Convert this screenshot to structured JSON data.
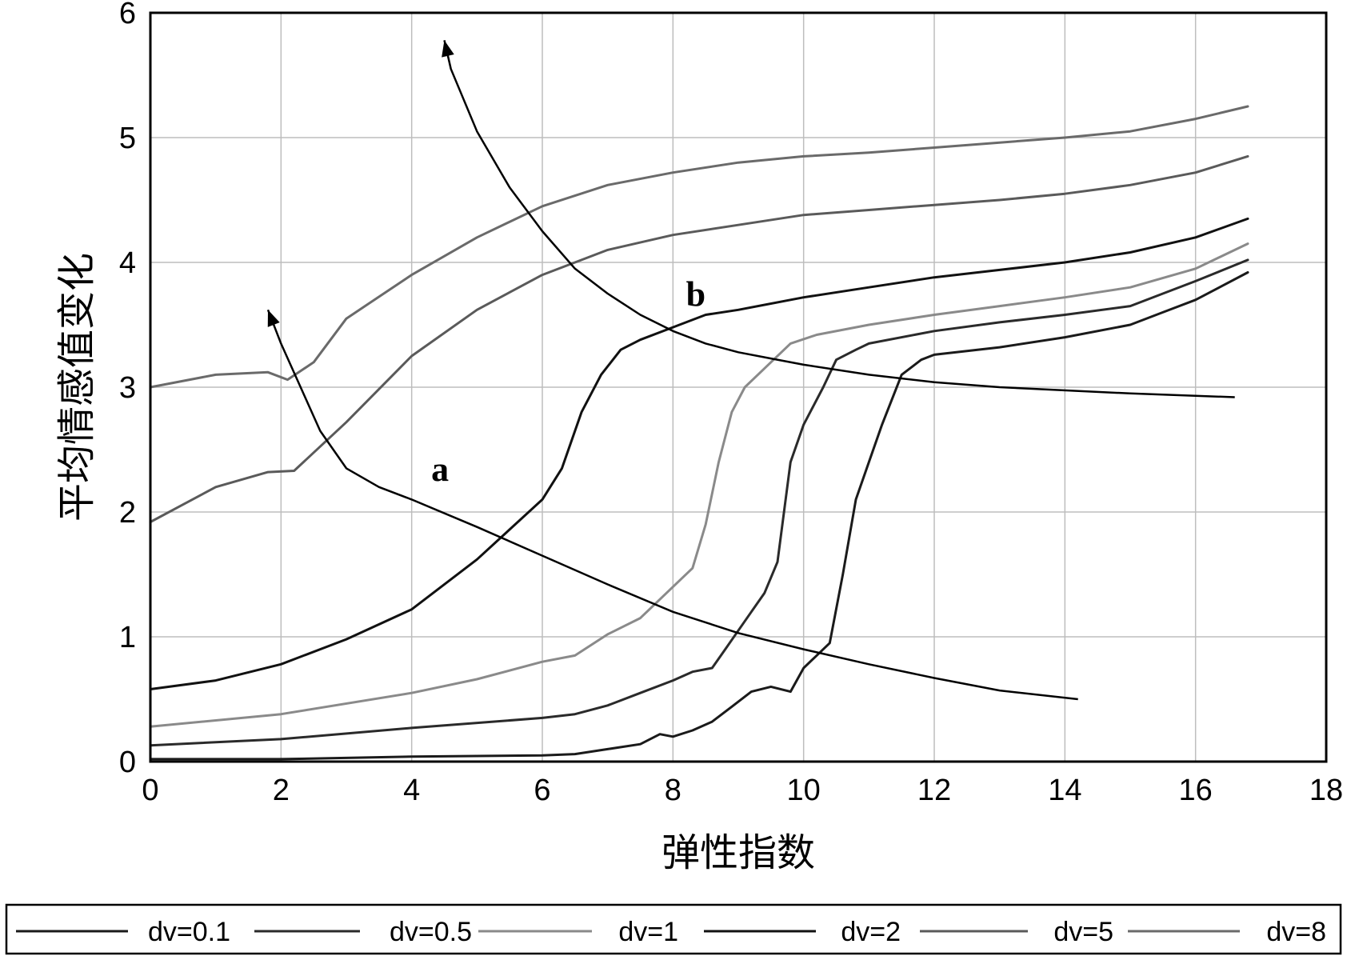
{
  "chart_data": {
    "type": "line",
    "title": "",
    "xlabel": "弹性指数",
    "ylabel": "平均情感值变化",
    "xlim": [
      0,
      18
    ],
    "ylim": [
      0,
      6
    ],
    "xticks": [
      0,
      2,
      4,
      6,
      8,
      10,
      12,
      14,
      16,
      18
    ],
    "yticks": [
      0,
      1,
      2,
      3,
      4,
      5,
      6
    ],
    "grid": true,
    "legend_position": "bottom",
    "series": [
      {
        "name": "dv=0.1",
        "color": "#1a1a1a",
        "x": [
          0,
          2,
          4,
          6,
          6.5,
          7,
          7.5,
          7.8,
          8,
          8.3,
          8.6,
          8.9,
          9.2,
          9.5,
          9.8,
          10.0,
          10.2,
          10.4,
          10.6,
          10.8,
          11.0,
          11.2,
          11.5,
          11.8,
          12,
          13,
          14,
          15,
          15.5,
          16,
          16.8
        ],
        "y": [
          0.02,
          0.02,
          0.04,
          0.05,
          0.06,
          0.1,
          0.14,
          0.22,
          0.2,
          0.25,
          0.32,
          0.44,
          0.56,
          0.6,
          0.56,
          0.75,
          0.85,
          0.95,
          1.5,
          2.1,
          2.4,
          2.7,
          3.1,
          3.22,
          3.26,
          3.32,
          3.4,
          3.5,
          3.6,
          3.7,
          3.92
        ]
      },
      {
        "name": "dv=0.5",
        "color": "#2a2a2a",
        "x": [
          0,
          2,
          4,
          6,
          6.5,
          7,
          7.5,
          8,
          8.3,
          8.6,
          8.8,
          9.0,
          9.2,
          9.4,
          9.6,
          9.8,
          10.0,
          10.3,
          10.5,
          10.8,
          11,
          12,
          13,
          14,
          15,
          15.5,
          16,
          16.8
        ],
        "y": [
          0.13,
          0.18,
          0.27,
          0.35,
          0.38,
          0.45,
          0.55,
          0.65,
          0.72,
          0.75,
          0.9,
          1.05,
          1.2,
          1.35,
          1.6,
          2.4,
          2.7,
          3.0,
          3.22,
          3.3,
          3.35,
          3.45,
          3.52,
          3.58,
          3.65,
          3.75,
          3.85,
          4.02
        ]
      },
      {
        "name": "dv=1",
        "color": "#8a8a8a",
        "x": [
          0,
          2,
          4,
          5,
          6,
          6.5,
          7,
          7.5,
          8,
          8.3,
          8.5,
          8.7,
          8.9,
          9.1,
          9.3,
          9.5,
          9.8,
          10.2,
          11,
          12,
          13,
          14,
          15,
          16,
          16.8
        ],
        "y": [
          0.28,
          0.38,
          0.55,
          0.66,
          0.8,
          0.85,
          1.02,
          1.15,
          1.4,
          1.55,
          1.9,
          2.4,
          2.8,
          3.0,
          3.1,
          3.2,
          3.35,
          3.42,
          3.5,
          3.58,
          3.65,
          3.72,
          3.8,
          3.95,
          4.15
        ]
      },
      {
        "name": "dv=2",
        "color": "#111111",
        "x": [
          0,
          1,
          2,
          3,
          4,
          5,
          6,
          6.3,
          6.6,
          6.9,
          7.2,
          7.5,
          8,
          8.5,
          9,
          10,
          11,
          12,
          13,
          14,
          15,
          16,
          16.8
        ],
        "y": [
          0.58,
          0.65,
          0.78,
          0.98,
          1.22,
          1.62,
          2.1,
          2.35,
          2.8,
          3.1,
          3.3,
          3.38,
          3.48,
          3.58,
          3.62,
          3.72,
          3.8,
          3.88,
          3.94,
          4.0,
          4.08,
          4.2,
          4.35
        ]
      },
      {
        "name": "dv=5",
        "color": "#5a5a5a",
        "x": [
          0,
          1,
          1.8,
          2.2,
          3,
          4,
          5,
          6,
          7,
          8,
          9,
          10,
          11,
          12,
          13,
          14,
          15,
          16,
          16.8
        ],
        "y": [
          1.92,
          2.2,
          2.32,
          2.33,
          2.72,
          3.25,
          3.62,
          3.9,
          4.1,
          4.22,
          4.3,
          4.38,
          4.42,
          4.46,
          4.5,
          4.55,
          4.62,
          4.72,
          4.85
        ]
      },
      {
        "name": "dv=8",
        "color": "#6a6a6a",
        "x": [
          0,
          1,
          1.8,
          2.1,
          2.5,
          3,
          4,
          5,
          6,
          7,
          8,
          9,
          10,
          11,
          12,
          13,
          14,
          15,
          16,
          16.8
        ],
        "y": [
          3.0,
          3.1,
          3.12,
          3.06,
          3.2,
          3.55,
          3.9,
          4.2,
          4.45,
          4.62,
          4.72,
          4.8,
          4.85,
          4.88,
          4.92,
          4.96,
          5.0,
          5.05,
          5.15,
          5.25
        ]
      }
    ],
    "annotations": [
      {
        "text": "a",
        "label_at": [
          4.3,
          2.25
        ],
        "arrow_x": [
          14.2,
          13,
          12,
          11,
          10,
          9,
          8,
          7,
          6,
          5,
          4,
          3.5,
          3,
          2.6,
          2.3,
          2.0,
          1.8
        ],
        "arrow_y": [
          0.5,
          0.57,
          0.67,
          0.78,
          0.9,
          1.03,
          1.2,
          1.42,
          1.65,
          1.88,
          2.1,
          2.2,
          2.35,
          2.65,
          3.0,
          3.35,
          3.62
        ]
      },
      {
        "text": "b",
        "label_at": [
          8.2,
          3.65
        ],
        "arrow_x": [
          16.6,
          15,
          13,
          12,
          11,
          10,
          9.5,
          9,
          8.5,
          8,
          7.5,
          7,
          6.5,
          6,
          5.5,
          5,
          4.8,
          4.6,
          4.5
        ],
        "arrow_y": [
          2.92,
          2.95,
          3.0,
          3.04,
          3.1,
          3.18,
          3.23,
          3.28,
          3.35,
          3.45,
          3.58,
          3.75,
          3.95,
          4.25,
          4.6,
          5.05,
          5.3,
          5.55,
          5.78
        ]
      }
    ]
  }
}
